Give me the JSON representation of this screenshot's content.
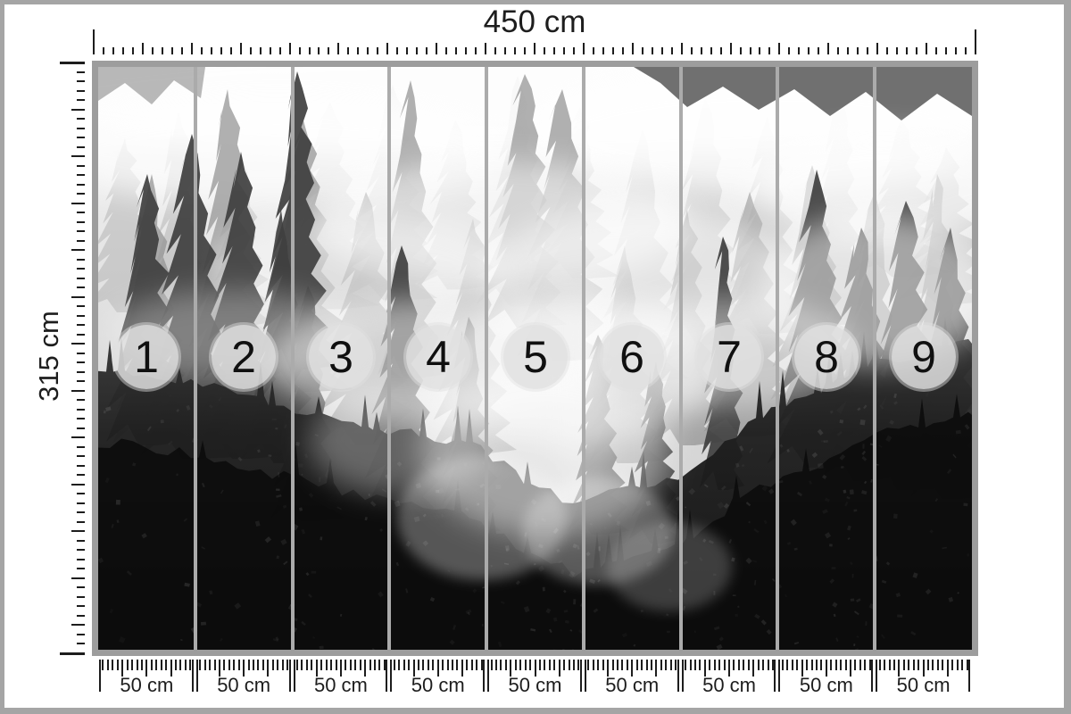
{
  "mockup": {
    "total_width_label": "450 cm",
    "total_height_label": "315 cm",
    "panels": [
      {
        "number": "1",
        "width_label": "50 cm"
      },
      {
        "number": "2",
        "width_label": "50 cm"
      },
      {
        "number": "3",
        "width_label": "50 cm"
      },
      {
        "number": "4",
        "width_label": "50 cm"
      },
      {
        "number": "5",
        "width_label": "50 cm"
      },
      {
        "number": "6",
        "width_label": "50 cm"
      },
      {
        "number": "7",
        "width_label": "50 cm"
      },
      {
        "number": "8",
        "width_label": "50 cm"
      },
      {
        "number": "9",
        "width_label": "50 cm"
      }
    ]
  },
  "colors": {
    "page_border": "#a5a5a5",
    "photo_frame": "#9d9d9d",
    "panel_divider": "#ababab",
    "tick": "#1d1d1d",
    "panel_badge_fill": "rgba(224,224,224,0.85)",
    "panel_badge_text": "#101010"
  }
}
